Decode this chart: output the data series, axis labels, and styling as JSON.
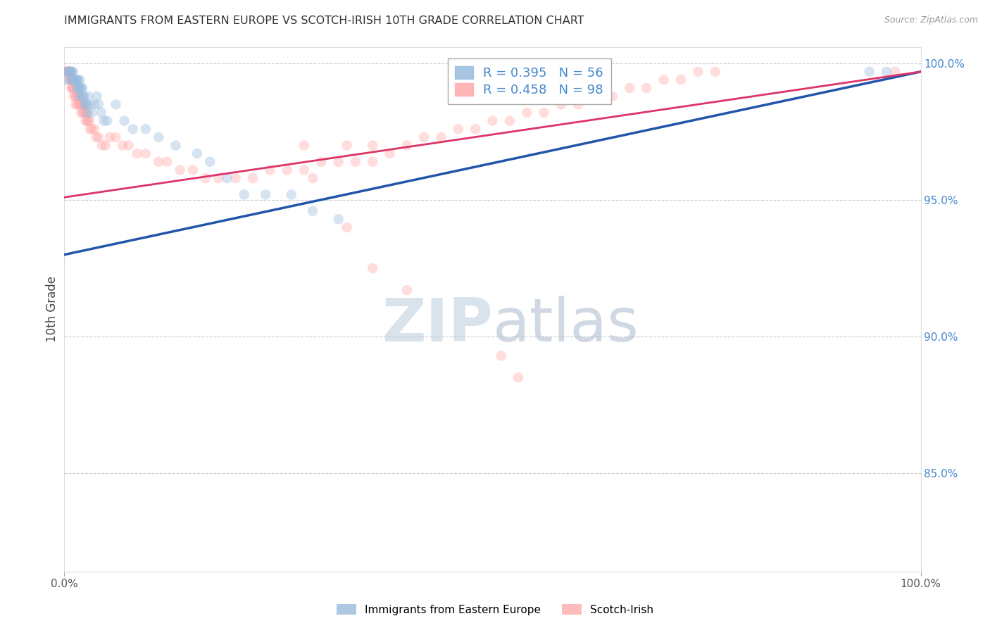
{
  "title": "IMMIGRANTS FROM EASTERN EUROPE VS SCOTCH-IRISH 10TH GRADE CORRELATION CHART",
  "source": "Source: ZipAtlas.com",
  "ylabel": "10th Grade",
  "xlim": [
    0.0,
    1.0
  ],
  "ylim": [
    0.814,
    1.006
  ],
  "yticks": [
    0.85,
    0.9,
    0.95,
    1.0
  ],
  "ytick_labels": [
    "85.0%",
    "90.0%",
    "95.0%",
    "100.0%"
  ],
  "xtick_labels": [
    "0.0%",
    "100.0%"
  ],
  "legend1_label": "R = 0.395   N = 56",
  "legend2_label": "R = 0.458   N = 98",
  "blue_color": "#99BBDD",
  "pink_color": "#FFAAAA",
  "blue_line_color": "#2255AA",
  "pink_line_color": "#DD3366",
  "blue_scatter": [
    [
      0.001,
      0.994
    ],
    [
      0.003,
      0.997
    ],
    [
      0.005,
      0.997
    ],
    [
      0.006,
      0.997
    ],
    [
      0.007,
      0.997
    ],
    [
      0.008,
      0.997
    ],
    [
      0.008,
      0.994
    ],
    [
      0.009,
      0.997
    ],
    [
      0.01,
      0.997
    ],
    [
      0.01,
      0.994
    ],
    [
      0.011,
      0.994
    ],
    [
      0.012,
      0.994
    ],
    [
      0.013,
      0.994
    ],
    [
      0.014,
      0.994
    ],
    [
      0.015,
      0.994
    ],
    [
      0.015,
      0.991
    ],
    [
      0.016,
      0.994
    ],
    [
      0.016,
      0.991
    ],
    [
      0.017,
      0.991
    ],
    [
      0.018,
      0.994
    ],
    [
      0.018,
      0.988
    ],
    [
      0.019,
      0.991
    ],
    [
      0.02,
      0.991
    ],
    [
      0.02,
      0.988
    ],
    [
      0.021,
      0.991
    ],
    [
      0.022,
      0.988
    ],
    [
      0.023,
      0.988
    ],
    [
      0.024,
      0.985
    ],
    [
      0.025,
      0.985
    ],
    [
      0.026,
      0.985
    ],
    [
      0.027,
      0.982
    ],
    [
      0.028,
      0.988
    ],
    [
      0.03,
      0.985
    ],
    [
      0.032,
      0.982
    ],
    [
      0.035,
      0.985
    ],
    [
      0.038,
      0.988
    ],
    [
      0.04,
      0.985
    ],
    [
      0.043,
      0.982
    ],
    [
      0.046,
      0.979
    ],
    [
      0.05,
      0.979
    ],
    [
      0.06,
      0.985
    ],
    [
      0.07,
      0.979
    ],
    [
      0.08,
      0.976
    ],
    [
      0.095,
      0.976
    ],
    [
      0.11,
      0.973
    ],
    [
      0.13,
      0.97
    ],
    [
      0.155,
      0.967
    ],
    [
      0.17,
      0.964
    ],
    [
      0.19,
      0.958
    ],
    [
      0.21,
      0.952
    ],
    [
      0.235,
      0.952
    ],
    [
      0.265,
      0.952
    ],
    [
      0.29,
      0.946
    ],
    [
      0.32,
      0.943
    ],
    [
      0.94,
      0.997
    ],
    [
      0.96,
      0.997
    ]
  ],
  "pink_scatter": [
    [
      0.001,
      0.997
    ],
    [
      0.002,
      0.997
    ],
    [
      0.003,
      0.997
    ],
    [
      0.003,
      0.997
    ],
    [
      0.004,
      0.997
    ],
    [
      0.005,
      0.997
    ],
    [
      0.005,
      0.997
    ],
    [
      0.006,
      0.997
    ],
    [
      0.006,
      0.994
    ],
    [
      0.007,
      0.997
    ],
    [
      0.007,
      0.994
    ],
    [
      0.008,
      0.994
    ],
    [
      0.008,
      0.991
    ],
    [
      0.009,
      0.994
    ],
    [
      0.009,
      0.991
    ],
    [
      0.01,
      0.994
    ],
    [
      0.01,
      0.991
    ],
    [
      0.011,
      0.991
    ],
    [
      0.011,
      0.988
    ],
    [
      0.012,
      0.991
    ],
    [
      0.013,
      0.988
    ],
    [
      0.013,
      0.985
    ],
    [
      0.014,
      0.988
    ],
    [
      0.015,
      0.988
    ],
    [
      0.015,
      0.985
    ],
    [
      0.016,
      0.988
    ],
    [
      0.017,
      0.985
    ],
    [
      0.018,
      0.985
    ],
    [
      0.019,
      0.985
    ],
    [
      0.02,
      0.982
    ],
    [
      0.021,
      0.985
    ],
    [
      0.021,
      0.982
    ],
    [
      0.022,
      0.985
    ],
    [
      0.023,
      0.982
    ],
    [
      0.024,
      0.982
    ],
    [
      0.025,
      0.979
    ],
    [
      0.026,
      0.979
    ],
    [
      0.027,
      0.982
    ],
    [
      0.028,
      0.979
    ],
    [
      0.029,
      0.979
    ],
    [
      0.03,
      0.976
    ],
    [
      0.032,
      0.976
    ],
    [
      0.035,
      0.976
    ],
    [
      0.037,
      0.973
    ],
    [
      0.04,
      0.973
    ],
    [
      0.044,
      0.97
    ],
    [
      0.048,
      0.97
    ],
    [
      0.053,
      0.973
    ],
    [
      0.06,
      0.973
    ],
    [
      0.068,
      0.97
    ],
    [
      0.075,
      0.97
    ],
    [
      0.085,
      0.967
    ],
    [
      0.095,
      0.967
    ],
    [
      0.11,
      0.964
    ],
    [
      0.12,
      0.964
    ],
    [
      0.135,
      0.961
    ],
    [
      0.15,
      0.961
    ],
    [
      0.165,
      0.958
    ],
    [
      0.18,
      0.958
    ],
    [
      0.2,
      0.958
    ],
    [
      0.22,
      0.958
    ],
    [
      0.24,
      0.961
    ],
    [
      0.26,
      0.961
    ],
    [
      0.28,
      0.961
    ],
    [
      0.3,
      0.964
    ],
    [
      0.32,
      0.964
    ],
    [
      0.34,
      0.964
    ],
    [
      0.36,
      0.964
    ],
    [
      0.38,
      0.967
    ],
    [
      0.4,
      0.97
    ],
    [
      0.42,
      0.973
    ],
    [
      0.44,
      0.973
    ],
    [
      0.46,
      0.976
    ],
    [
      0.48,
      0.976
    ],
    [
      0.5,
      0.979
    ],
    [
      0.52,
      0.979
    ],
    [
      0.54,
      0.982
    ],
    [
      0.56,
      0.982
    ],
    [
      0.58,
      0.985
    ],
    [
      0.6,
      0.985
    ],
    [
      0.62,
      0.988
    ],
    [
      0.64,
      0.988
    ],
    [
      0.66,
      0.991
    ],
    [
      0.68,
      0.991
    ],
    [
      0.7,
      0.994
    ],
    [
      0.72,
      0.994
    ],
    [
      0.74,
      0.997
    ],
    [
      0.76,
      0.997
    ],
    [
      0.29,
      0.958
    ],
    [
      0.33,
      0.94
    ],
    [
      0.36,
      0.925
    ],
    [
      0.4,
      0.917
    ],
    [
      0.51,
      0.893
    ],
    [
      0.53,
      0.885
    ],
    [
      0.28,
      0.97
    ],
    [
      0.33,
      0.97
    ],
    [
      0.36,
      0.97
    ],
    [
      0.97,
      0.997
    ]
  ],
  "blue_line_x": [
    0.0,
    1.0
  ],
  "blue_line_y": [
    0.93,
    0.997
  ],
  "pink_line_x": [
    0.0,
    1.0
  ],
  "pink_line_y": [
    0.951,
    0.997
  ],
  "marker_size": 110,
  "alpha": 0.4,
  "background_color": "#FFFFFF",
  "grid_color": "#CCCCCC",
  "right_axis_color": "#4488CC",
  "watermark_color": "#DDEEFF",
  "watermark_alpha": 0.55
}
